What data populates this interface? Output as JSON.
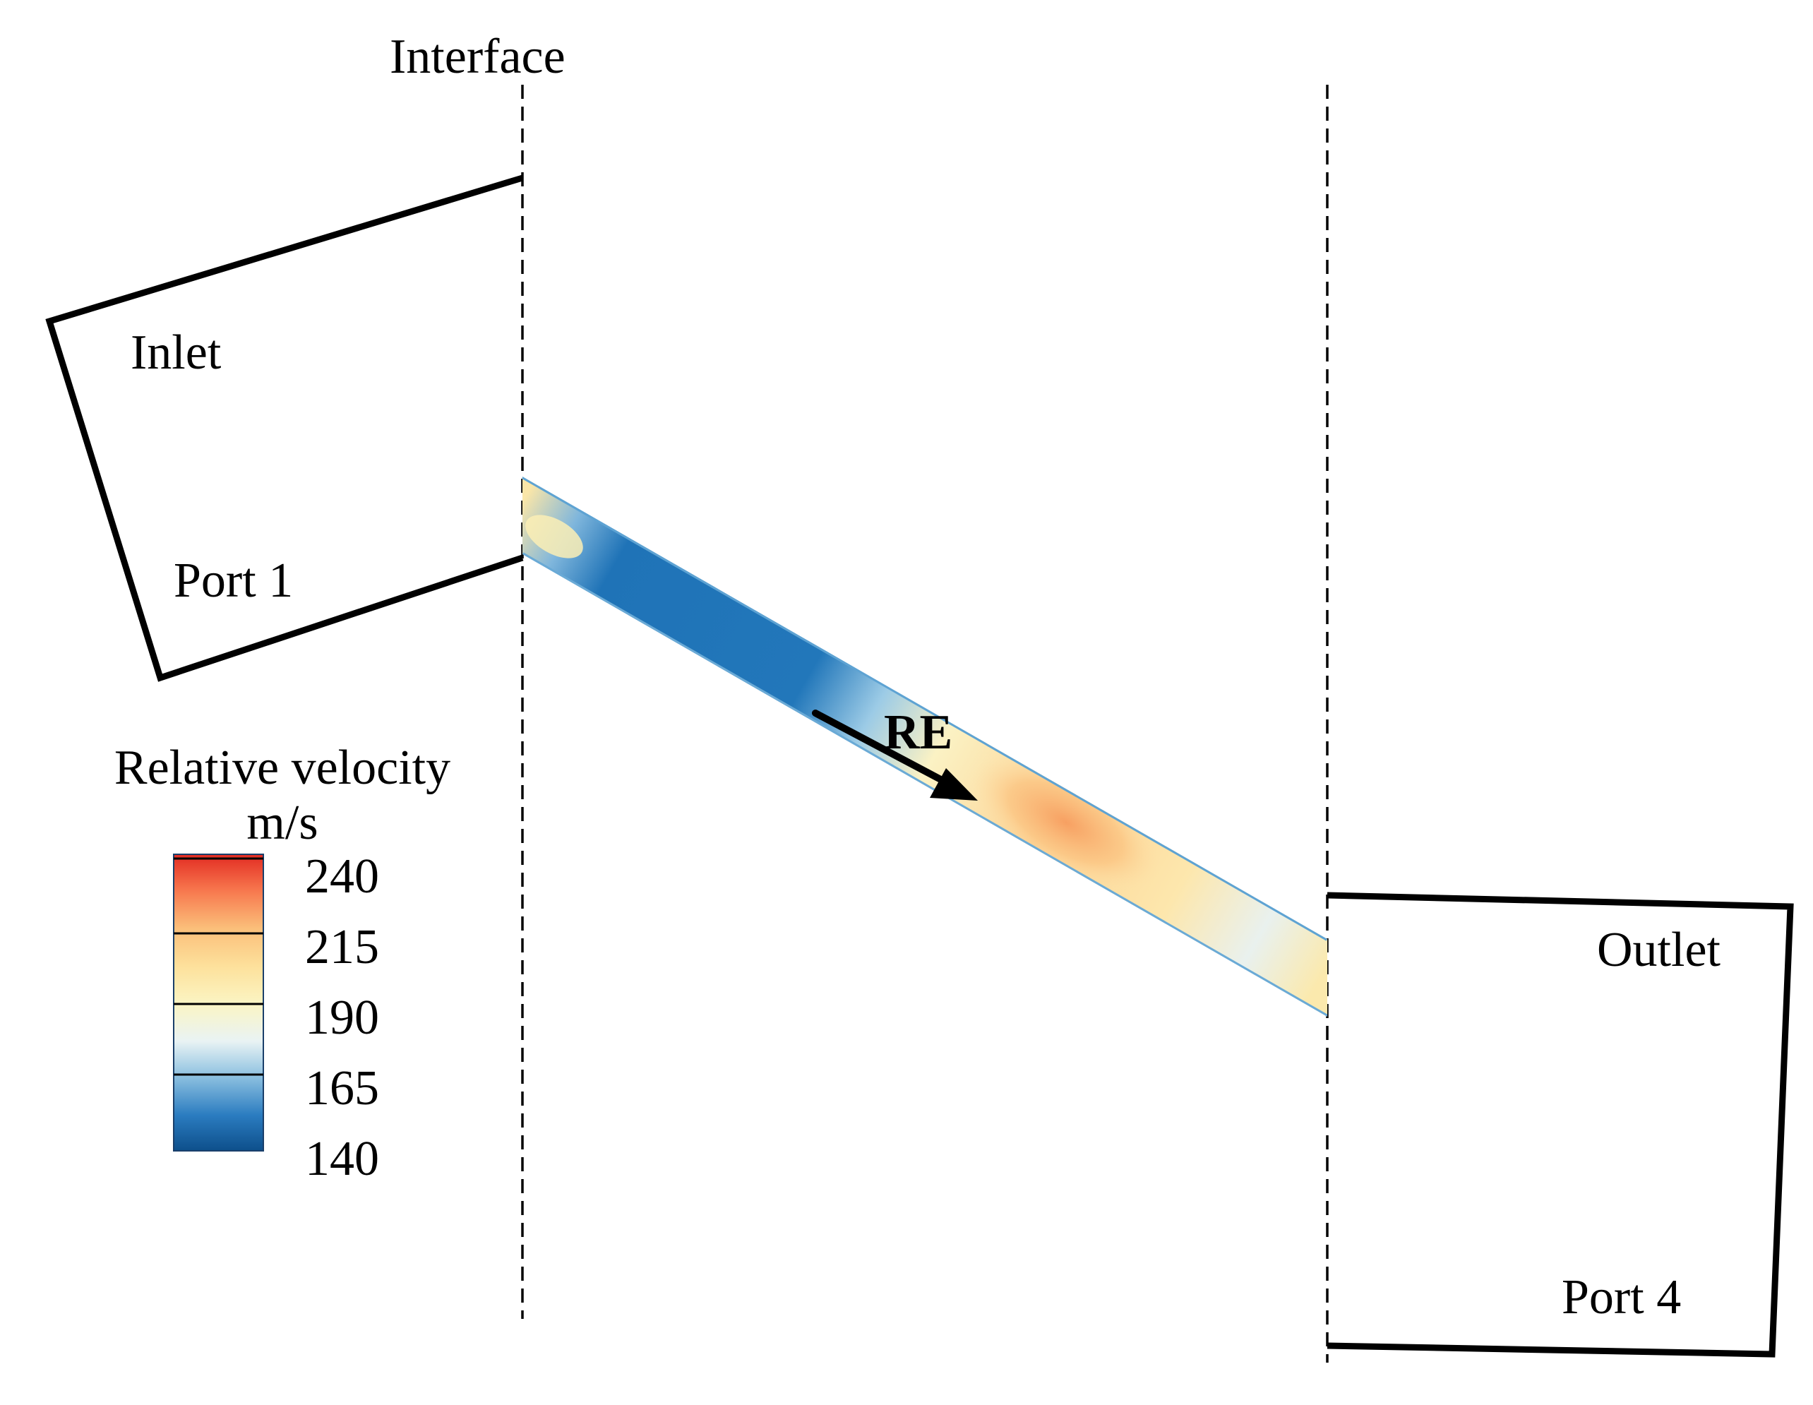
{
  "labels": {
    "interface": "Interface",
    "inlet": "Inlet",
    "port1": "Port 1",
    "outlet": "Outlet",
    "port4": "Port 4",
    "direction": "RE"
  },
  "legend": {
    "title": "Relative velocity",
    "unit": "m/s",
    "ticks": [
      "240",
      "215",
      "190",
      "165",
      "140"
    ],
    "min": 140,
    "max": 240
  },
  "colors": {
    "low": "#1f6fb5",
    "mid_low": "#a9cfe6",
    "mid": "#fbf4c6",
    "mid_high": "#fbcc86",
    "high": "#e6392a",
    "outline": "#000000"
  }
}
